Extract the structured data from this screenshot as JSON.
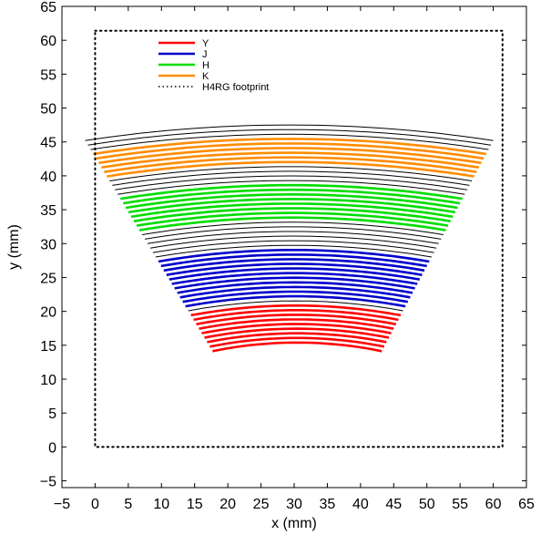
{
  "chart_data": {
    "type": "line",
    "title": "",
    "xlabel": "x (mm)",
    "ylabel": "y (mm)",
    "xlim": [
      -5,
      65
    ],
    "ylim": [
      -6,
      65
    ],
    "xticks": [
      -5,
      0,
      5,
      10,
      15,
      20,
      25,
      30,
      35,
      40,
      45,
      50,
      55,
      60,
      65
    ],
    "yticks": [
      -5,
      0,
      5,
      10,
      15,
      20,
      25,
      30,
      35,
      40,
      45,
      50,
      55,
      60,
      65
    ],
    "grid": false,
    "legend_position": "top-left",
    "legend": [
      {
        "label": "Y",
        "color": "#ff0000",
        "style": "solid"
      },
      {
        "label": "J",
        "color": "#0000cc",
        "style": "solid"
      },
      {
        "label": "H",
        "color": "#00dd00",
        "style": "solid"
      },
      {
        "label": "K",
        "color": "#ff8c00",
        "style": "solid"
      },
      {
        "label": "H4RG footprint",
        "color": "#000000",
        "style": "dotted"
      }
    ],
    "footprint": {
      "x": [
        0,
        61.4
      ],
      "y": [
        0,
        61.4
      ]
    },
    "trace_family": {
      "sag_mm": 2.3,
      "top": {
        "y": 47.5,
        "x": [
          -1.5,
          60.0
        ]
      },
      "bottom": {
        "y": 15.4,
        "x": [
          17.7,
          43.2
        ]
      },
      "count": 48
    },
    "series": [
      {
        "name": "Y",
        "color": "#ff0000",
        "y_range": [
          15.4,
          21.0
        ],
        "count": 10
      },
      {
        "name": "J",
        "color": "#0000cc",
        "y_range": [
          22.0,
          29.5
        ],
        "count": 11
      },
      {
        "name": "H",
        "color": "#00dd00",
        "y_range": [
          33.5,
          39.0
        ],
        "count": 9
      },
      {
        "name": "K",
        "color": "#ff8c00",
        "y_range": [
          41.5,
          46.0
        ],
        "count": 8
      }
    ]
  }
}
